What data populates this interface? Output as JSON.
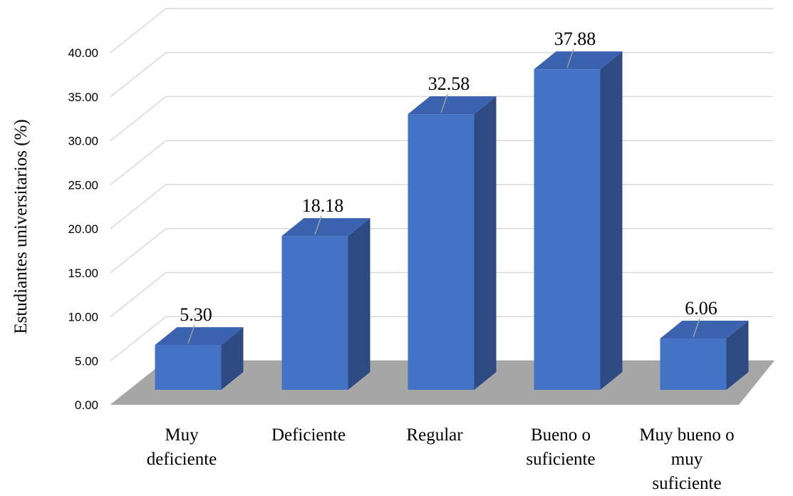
{
  "chart_data": {
    "type": "bar",
    "ylabel": "Estudiantes universitarios  (%)",
    "categories": [
      [
        "Muy",
        "deficiente"
      ],
      [
        "Deficiente"
      ],
      [
        "Regular"
      ],
      [
        "Bueno o",
        "suficiente"
      ],
      [
        "Muy bueno o",
        "muy",
        "suficiente"
      ]
    ],
    "values": [
      5.3,
      18.18,
      32.58,
      37.88,
      6.06
    ],
    "data_labels": [
      "5.30",
      "18.18",
      "32.58",
      "37.88",
      "6.06"
    ],
    "ylim": [
      0,
      40
    ],
    "yticks": [
      "0.00",
      "5.00",
      "10.00",
      "15.00",
      "20.00",
      "25.00",
      "30.00",
      "35.00",
      "40.00"
    ],
    "grid": true,
    "colors": {
      "bar_front": "#4472C4",
      "bar_side": "#2E4A82",
      "bar_top": "#3A62AE",
      "floor": "#A6A6A6",
      "grid": "#D9D9D9"
    }
  }
}
